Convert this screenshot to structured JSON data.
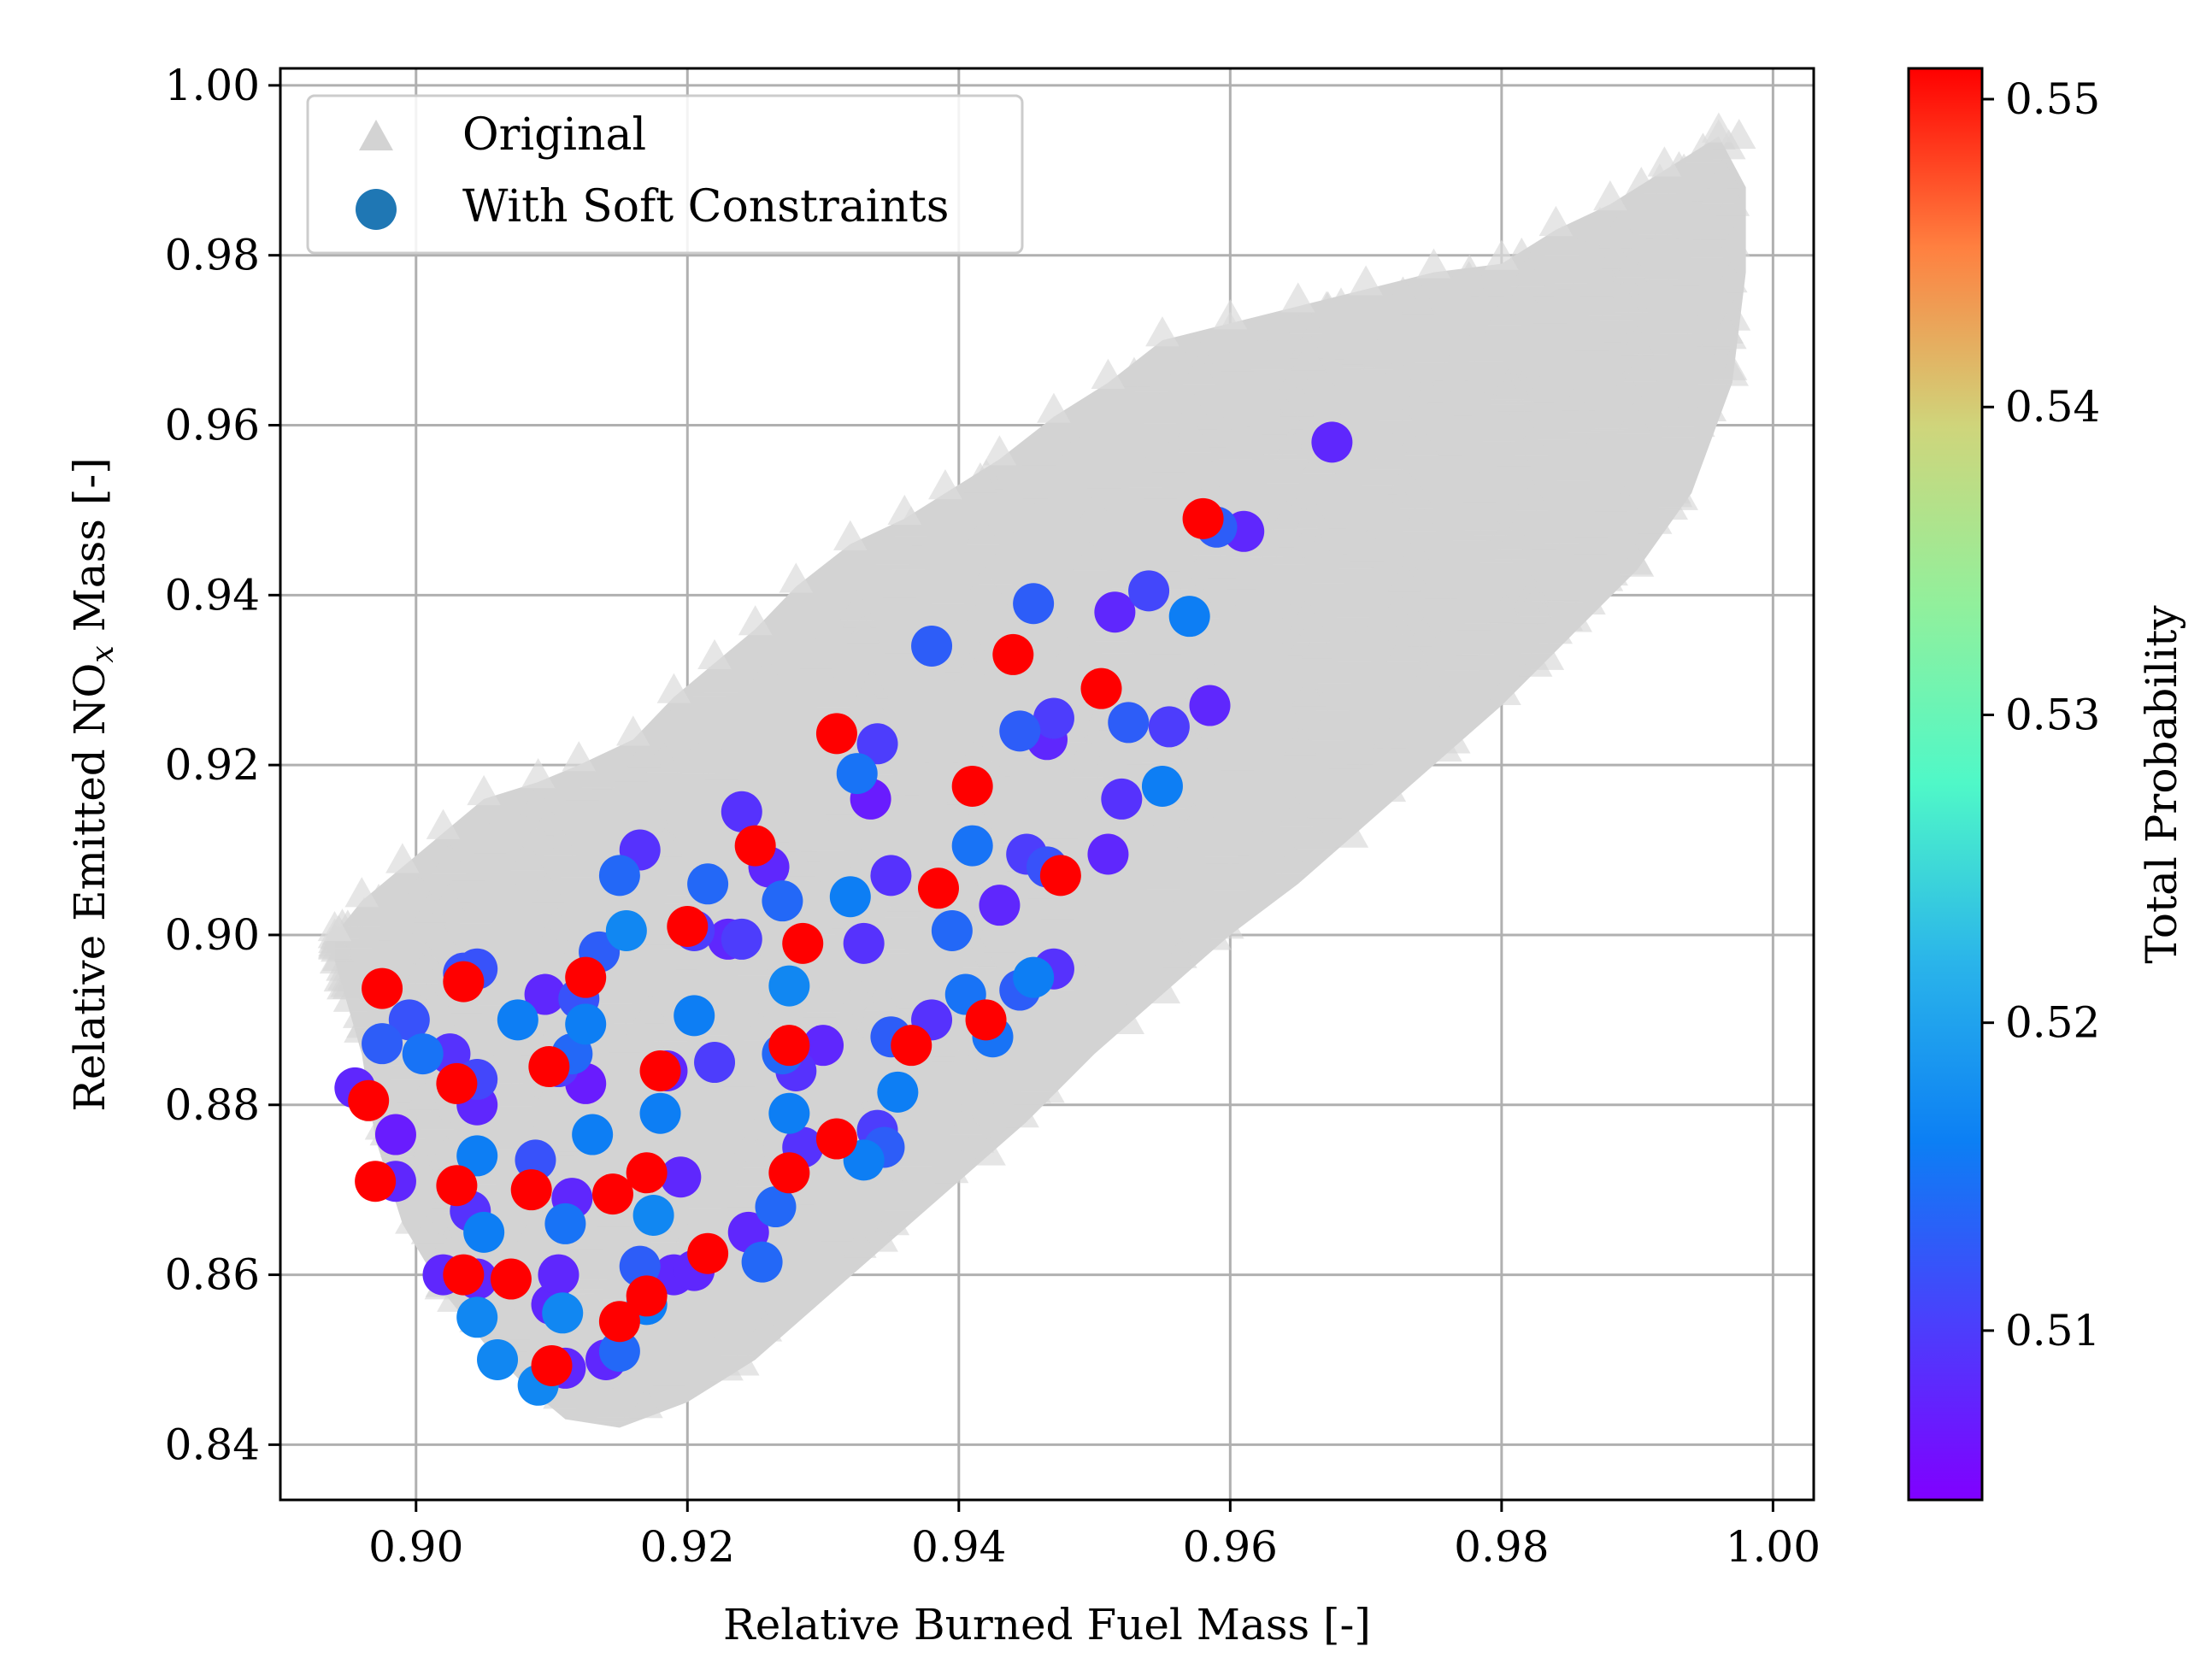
{
  "chart_data": {
    "type": "scatter",
    "title": "",
    "xlabel": "Relative Burned Fuel Mass [-]",
    "ylabel": "Relative Emitted NO",
    "ylabel_subscript": "x",
    "ylabel_suffix": " Mass [-]",
    "xlim": [
      0.89,
      1.003
    ],
    "ylim": [
      0.8335,
      1.002
    ],
    "x_ticks": [
      0.9,
      0.92,
      0.94,
      0.96,
      0.98,
      1.0
    ],
    "x_tick_labels": [
      "0.90",
      "0.92",
      "0.94",
      "0.96",
      "0.98",
      "1.00"
    ],
    "y_ticks": [
      0.84,
      0.86,
      0.88,
      0.9,
      0.92,
      0.94,
      0.96,
      0.98,
      1.0
    ],
    "y_tick_labels": [
      "0.84",
      "0.86",
      "0.88",
      "0.90",
      "0.92",
      "0.94",
      "0.96",
      "0.98",
      "1.00"
    ],
    "grid": true,
    "legend": {
      "placement": "top-left",
      "entries": [
        {
          "label": "Original",
          "marker": "triangle",
          "color": "#d3d3d3"
        },
        {
          "label": "With Soft Constraints",
          "marker": "circle",
          "color": "#1f77b4"
        }
      ]
    },
    "colorbar": {
      "label": "Total Probability",
      "colormap": "rainbow",
      "range": [
        0.5045,
        0.551
      ],
      "ticks": [
        0.51,
        0.52,
        0.53,
        0.54,
        0.55
      ],
      "tick_labels": [
        "0.51",
        "0.52",
        "0.53",
        "0.54",
        "0.55"
      ]
    },
    "series": [
      {
        "name": "Original",
        "marker": "triangle",
        "color": "#d3d3d3",
        "description": "dense cloud of a few thousand solutions; band edges listed, interior filled",
        "upper_edge": [
          [
            0.894,
            0.9
          ],
          [
            0.896,
            0.904
          ],
          [
            0.899,
            0.908
          ],
          [
            0.902,
            0.912
          ],
          [
            0.905,
            0.916
          ],
          [
            0.909,
            0.918
          ],
          [
            0.912,
            0.92
          ],
          [
            0.916,
            0.923
          ],
          [
            0.919,
            0.928
          ],
          [
            0.922,
            0.932
          ],
          [
            0.925,
            0.936
          ],
          [
            0.928,
            0.941
          ],
          [
            0.932,
            0.946
          ],
          [
            0.936,
            0.949
          ],
          [
            0.939,
            0.952
          ],
          [
            0.943,
            0.956
          ],
          [
            0.947,
            0.961
          ],
          [
            0.951,
            0.965
          ],
          [
            0.955,
            0.97
          ],
          [
            0.96,
            0.972
          ],
          [
            0.965,
            0.974
          ],
          [
            0.97,
            0.976
          ],
          [
            0.975,
            0.978
          ],
          [
            0.98,
            0.979
          ],
          [
            0.984,
            0.983
          ],
          [
            0.988,
            0.986
          ],
          [
            0.992,
            0.99
          ],
          [
            0.996,
            0.994
          ]
        ],
        "lower_edge": [
          [
            0.894,
            0.897
          ],
          [
            0.896,
            0.886
          ],
          [
            0.897,
            0.876
          ],
          [
            0.899,
            0.866
          ],
          [
            0.902,
            0.858
          ],
          [
            0.905,
            0.852
          ],
          [
            0.908,
            0.847
          ],
          [
            0.911,
            0.843
          ],
          [
            0.915,
            0.842
          ],
          [
            0.92,
            0.845
          ],
          [
            0.925,
            0.85
          ],
          [
            0.93,
            0.857
          ],
          [
            0.935,
            0.864
          ],
          [
            0.94,
            0.871
          ],
          [
            0.945,
            0.878
          ],
          [
            0.95,
            0.886
          ],
          [
            0.955,
            0.893
          ],
          [
            0.96,
            0.9
          ],
          [
            0.965,
            0.906
          ],
          [
            0.97,
            0.913
          ],
          [
            0.975,
            0.92
          ],
          [
            0.98,
            0.927
          ],
          [
            0.985,
            0.935
          ],
          [
            0.99,
            0.943
          ],
          [
            0.994,
            0.952
          ],
          [
            0.997,
            0.965
          ],
          [
            0.998,
            0.978
          ],
          [
            0.998,
            0.988
          ]
        ]
      },
      {
        "name": "With Soft Constraints",
        "marker": "circle",
        "color_by": "Total Probability",
        "points": [
          [
            0.8955,
            0.882,
            0.508
          ],
          [
            0.8965,
            0.8805,
            0.551
          ],
          [
            0.8975,
            0.8937,
            0.551
          ],
          [
            0.8975,
            0.8872,
            0.513
          ],
          [
            0.8985,
            0.8765,
            0.507
          ],
          [
            0.897,
            0.871,
            0.551
          ],
          [
            0.8985,
            0.871,
            0.508
          ],
          [
            0.8995,
            0.89,
            0.512
          ],
          [
            0.9005,
            0.886,
            0.515
          ],
          [
            0.902,
            0.86,
            0.508
          ],
          [
            0.9025,
            0.886,
            0.509
          ],
          [
            0.903,
            0.8825,
            0.551
          ],
          [
            0.9035,
            0.8945,
            0.551
          ],
          [
            0.903,
            0.8705,
            0.551
          ],
          [
            0.9035,
            0.86,
            0.551
          ],
          [
            0.9035,
            0.8955,
            0.512
          ],
          [
            0.9045,
            0.883,
            0.511
          ],
          [
            0.9045,
            0.896,
            0.512
          ],
          [
            0.9045,
            0.88,
            0.508
          ],
          [
            0.9045,
            0.874,
            0.516
          ],
          [
            0.904,
            0.8675,
            0.509
          ],
          [
            0.905,
            0.865,
            0.516
          ],
          [
            0.9045,
            0.855,
            0.517
          ],
          [
            0.9045,
            0.8595,
            0.508
          ],
          [
            0.906,
            0.85,
            0.517
          ],
          [
            0.907,
            0.8595,
            0.551
          ],
          [
            0.9075,
            0.89,
            0.516
          ],
          [
            0.9085,
            0.87,
            0.551
          ],
          [
            0.9088,
            0.8735,
            0.512
          ],
          [
            0.9095,
            0.893,
            0.508
          ],
          [
            0.9098,
            0.8845,
            0.551
          ],
          [
            0.91,
            0.8493,
            0.551
          ],
          [
            0.909,
            0.847,
            0.517
          ],
          [
            0.91,
            0.8565,
            0.508
          ],
          [
            0.9105,
            0.8845,
            0.51
          ],
          [
            0.9105,
            0.86,
            0.508
          ],
          [
            0.9108,
            0.8555,
            0.517
          ],
          [
            0.911,
            0.849,
            0.508
          ],
          [
            0.911,
            0.866,
            0.515
          ],
          [
            0.9115,
            0.886,
            0.514
          ],
          [
            0.9115,
            0.869,
            0.508
          ],
          [
            0.912,
            0.8925,
            0.512
          ],
          [
            0.9125,
            0.895,
            0.551
          ],
          [
            0.9125,
            0.8825,
            0.507
          ],
          [
            0.913,
            0.8765,
            0.516
          ],
          [
            0.9125,
            0.8895,
            0.516
          ],
          [
            0.9135,
            0.898,
            0.513
          ],
          [
            0.914,
            0.85,
            0.508
          ],
          [
            0.915,
            0.8545,
            0.551
          ],
          [
            0.915,
            0.851,
            0.514
          ],
          [
            0.9145,
            0.8695,
            0.551
          ],
          [
            0.9155,
            0.9005,
            0.517
          ],
          [
            0.915,
            0.907,
            0.514
          ],
          [
            0.9165,
            0.91,
            0.509
          ],
          [
            0.9165,
            0.861,
            0.513
          ],
          [
            0.917,
            0.8575,
            0.551
          ],
          [
            0.917,
            0.8565,
            0.516
          ],
          [
            0.917,
            0.872,
            0.551
          ],
          [
            0.9175,
            0.867,
            0.517
          ],
          [
            0.918,
            0.884,
            0.551
          ],
          [
            0.918,
            0.879,
            0.516
          ],
          [
            0.9185,
            0.884,
            0.508
          ],
          [
            0.919,
            0.86,
            0.508
          ],
          [
            0.9195,
            0.8715,
            0.508
          ],
          [
            0.92,
            0.901,
            0.551
          ],
          [
            0.9205,
            0.9005,
            0.51
          ],
          [
            0.9205,
            0.8905,
            0.516
          ],
          [
            0.9205,
            0.8605,
            0.508
          ],
          [
            0.9215,
            0.8625,
            0.551
          ],
          [
            0.9215,
            0.906,
            0.514
          ],
          [
            0.922,
            0.885,
            0.51
          ],
          [
            0.923,
            0.8995,
            0.508
          ],
          [
            0.924,
            0.9145,
            0.509
          ],
          [
            0.924,
            0.8995,
            0.51
          ],
          [
            0.9245,
            0.865,
            0.508
          ],
          [
            0.925,
            0.9105,
            0.551
          ],
          [
            0.9255,
            0.8615,
            0.514
          ],
          [
            0.926,
            0.908,
            0.508
          ],
          [
            0.9265,
            0.868,
            0.514
          ],
          [
            0.927,
            0.886,
            0.514
          ],
          [
            0.927,
            0.904,
            0.514
          ],
          [
            0.9275,
            0.887,
            0.551
          ],
          [
            0.9275,
            0.879,
            0.516
          ],
          [
            0.9275,
            0.872,
            0.551
          ],
          [
            0.9275,
            0.894,
            0.517
          ],
          [
            0.928,
            0.884,
            0.509
          ],
          [
            0.9285,
            0.875,
            0.509
          ],
          [
            0.9285,
            0.899,
            0.551
          ],
          [
            0.93,
            0.887,
            0.508
          ],
          [
            0.931,
            0.876,
            0.551
          ],
          [
            0.931,
            0.9237,
            0.551
          ],
          [
            0.932,
            0.9045,
            0.516
          ],
          [
            0.9325,
            0.919,
            0.515
          ],
          [
            0.933,
            0.8735,
            0.516
          ],
          [
            0.933,
            0.899,
            0.509
          ],
          [
            0.9335,
            0.916,
            0.507
          ],
          [
            0.934,
            0.9225,
            0.51
          ],
          [
            0.934,
            0.877,
            0.51
          ],
          [
            0.9345,
            0.875,
            0.513
          ],
          [
            0.935,
            0.888,
            0.513
          ],
          [
            0.935,
            0.907,
            0.509
          ],
          [
            0.9355,
            0.8815,
            0.516
          ],
          [
            0.9365,
            0.887,
            0.551
          ],
          [
            0.938,
            0.934,
            0.513
          ],
          [
            0.938,
            0.89,
            0.509
          ],
          [
            0.9385,
            0.9055,
            0.551
          ],
          [
            0.9395,
            0.9005,
            0.514
          ],
          [
            0.9405,
            0.893,
            0.515
          ],
          [
            0.941,
            0.9175,
            0.551
          ],
          [
            0.941,
            0.9105,
            0.515
          ],
          [
            0.942,
            0.89,
            0.551
          ],
          [
            0.9425,
            0.888,
            0.515
          ],
          [
            0.943,
            0.9035,
            0.508
          ],
          [
            0.944,
            0.933,
            0.551
          ],
          [
            0.9445,
            0.8935,
            0.513
          ],
          [
            0.9445,
            0.924,
            0.513
          ],
          [
            0.945,
            0.9095,
            0.51
          ],
          [
            0.9455,
            0.895,
            0.516
          ],
          [
            0.9455,
            0.939,
            0.513
          ],
          [
            0.9465,
            0.923,
            0.508
          ],
          [
            0.9465,
            0.908,
            0.512
          ],
          [
            0.947,
            0.896,
            0.509
          ],
          [
            0.947,
            0.9255,
            0.51
          ],
          [
            0.9475,
            0.907,
            0.551
          ],
          [
            0.9505,
            0.929,
            0.551
          ],
          [
            0.951,
            0.9095,
            0.508
          ],
          [
            0.9515,
            0.938,
            0.508
          ],
          [
            0.952,
            0.916,
            0.509
          ],
          [
            0.9525,
            0.925,
            0.513
          ],
          [
            0.954,
            0.9405,
            0.511
          ],
          [
            0.955,
            0.9175,
            0.516
          ],
          [
            0.9555,
            0.9245,
            0.51
          ],
          [
            0.957,
            0.9375,
            0.516
          ],
          [
            0.958,
            0.949,
            0.551
          ],
          [
            0.9585,
            0.927,
            0.508
          ],
          [
            0.959,
            0.948,
            0.513
          ],
          [
            0.961,
            0.9475,
            0.508
          ],
          [
            0.9675,
            0.958,
            0.508
          ]
        ]
      }
    ]
  }
}
